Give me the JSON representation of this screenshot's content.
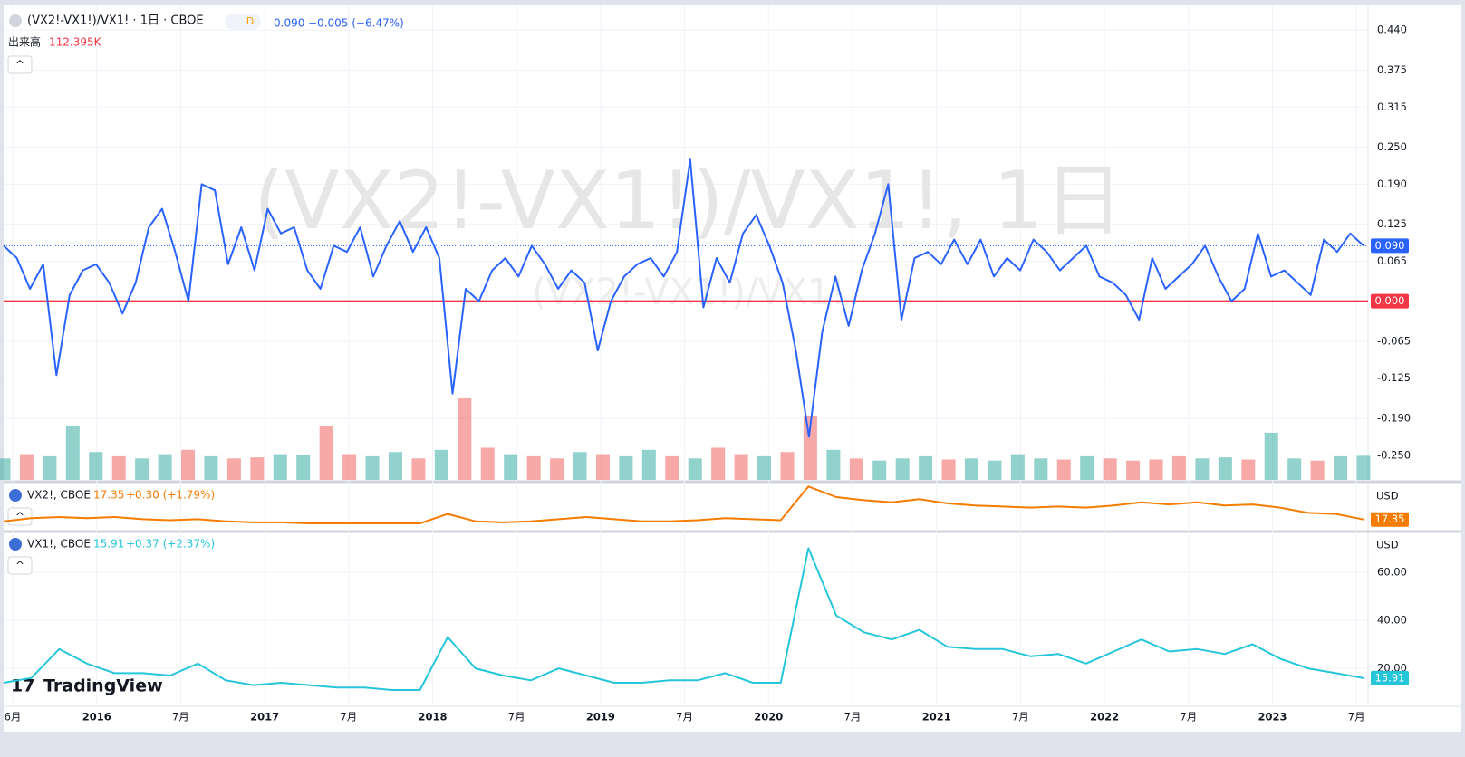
{
  "chart_data": [
    {
      "type": "line",
      "title": "(VX2!-VX1!)/VX1! · 1日 · CBOE",
      "interval_badge": "D",
      "change_label": "−0.005 (−6.47%)",
      "watermark": "(VX2!-VX1!)/VX1!, 1日",
      "watermark_sub": "(VX2!-VX1!)/VX1!",
      "color": "#2962ff",
      "ylim": [
        -0.29,
        0.48
      ],
      "yticks": [
        {
          "value": -0.25,
          "label": "-0.250"
        },
        {
          "value": -0.19,
          "label": "-0.190"
        },
        {
          "value": -0.125,
          "label": "-0.125"
        },
        {
          "value": -0.065,
          "label": "-0.065"
        },
        {
          "value": 0.065,
          "label": "0.065"
        },
        {
          "value": 0.125,
          "label": "0.125"
        },
        {
          "value": 0.19,
          "label": "0.190"
        },
        {
          "value": 0.25,
          "label": "0.250"
        },
        {
          "value": 0.315,
          "label": "0.315"
        },
        {
          "value": 0.375,
          "label": "0.375"
        },
        {
          "value": 0.44,
          "label": "0.440"
        }
      ],
      "price_line": {
        "value": 0.09,
        "label": "0.090"
      },
      "zero_line": {
        "value": 0,
        "label": "0.000",
        "color": "#f23645"
      },
      "values": [
        0.09,
        0.07,
        0.02,
        0.06,
        -0.12,
        0.01,
        0.05,
        0.06,
        0.03,
        -0.02,
        0.03,
        0.12,
        0.15,
        0.08,
        0.0,
        0.19,
        0.18,
        0.06,
        0.12,
        0.05,
        0.15,
        0.11,
        0.12,
        0.05,
        0.02,
        0.09,
        0.08,
        0.12,
        0.04,
        0.09,
        0.13,
        0.08,
        0.12,
        0.07,
        -0.15,
        0.02,
        0.0,
        0.05,
        0.07,
        0.04,
        0.09,
        0.06,
        0.02,
        0.05,
        0.03,
        -0.08,
        0.0,
        0.04,
        0.06,
        0.07,
        0.04,
        0.08,
        0.23,
        -0.01,
        0.07,
        0.03,
        0.11,
        0.14,
        0.09,
        0.03,
        -0.08,
        -0.22,
        -0.05,
        0.04,
        -0.04,
        0.05,
        0.11,
        0.19,
        -0.03,
        0.07,
        0.08,
        0.06,
        0.1,
        0.06,
        0.1,
        0.04,
        0.07,
        0.05,
        0.1,
        0.08,
        0.05,
        0.07,
        0.09,
        0.04,
        0.03,
        0.01,
        -0.03,
        0.07,
        0.02,
        0.04,
        0.06,
        0.09,
        0.04,
        0.0,
        0.02,
        0.11,
        0.04,
        0.05,
        0.03,
        0.01,
        0.1,
        0.08,
        0.11,
        0.09
      ],
      "volume": {
        "name": "出来高",
        "value_label": "112.395K",
        "up_color": "#26a69a",
        "down_color": "#ef5350",
        "values": [
          100,
          120,
          110,
          250,
          130,
          110,
          100,
          120,
          140,
          110,
          100,
          105,
          120,
          115,
          250,
          120,
          110,
          130,
          100,
          140,
          380,
          150,
          120,
          110,
          100,
          130,
          120,
          110,
          140,
          110,
          100,
          150,
          120,
          110,
          130,
          300,
          140,
          100,
          90,
          100,
          110,
          95,
          100,
          90,
          120,
          100,
          95,
          110,
          100,
          90,
          95,
          110,
          100,
          105,
          95,
          220,
          100,
          90,
          110,
          112.395
        ]
      }
    },
    {
      "type": "line",
      "name": "VX2!, CBOE",
      "color": "#f57c00",
      "change_label": "+0.30 (+1.79%)",
      "currency": "USD",
      "last": {
        "value": 17.35,
        "label": "17.35"
      },
      "ylim": [
        12.5,
        34
      ],
      "values": [
        16.5,
        18,
        18.5,
        18,
        18.5,
        17.5,
        17,
        17.5,
        16.5,
        16,
        16,
        15.5,
        15.5,
        15.5,
        15.5,
        15.5,
        20,
        16.5,
        16,
        16.5,
        17.5,
        18.5,
        17.5,
        16.5,
        16.5,
        17,
        18,
        17.5,
        17,
        33,
        28,
        26.5,
        25.5,
        27,
        25,
        24,
        23.5,
        23,
        23.5,
        23,
        24,
        25.5,
        24.5,
        25.5,
        24,
        24.5,
        23,
        20.5,
        20,
        17.35
      ]
    },
    {
      "type": "line",
      "name": "VX1!, CBOE",
      "color": "#26c6da",
      "change_label": "+0.37 (+2.37%)",
      "currency": "USD",
      "last": {
        "value": 15.91,
        "label": "15.91"
      },
      "ylim": [
        4.2,
        75.8
      ],
      "yticks": [
        {
          "value": 20,
          "label": "20.00"
        },
        {
          "value": 40,
          "label": "40.00"
        },
        {
          "value": 60,
          "label": "60.00"
        }
      ],
      "values": [
        14,
        16,
        28,
        22,
        18,
        18,
        17,
        22,
        15,
        13,
        14,
        13,
        12,
        12,
        11,
        11,
        33,
        20,
        17,
        15,
        20,
        17,
        14,
        14,
        15,
        15,
        18,
        14,
        14,
        70,
        42,
        35,
        32,
        36,
        29,
        28,
        28,
        25,
        26,
        22,
        27,
        32,
        27,
        28,
        26,
        30,
        24,
        20,
        18,
        15.91
      ]
    }
  ],
  "time_axis": [
    "6月",
    "2016",
    "7月",
    "2017",
    "7月",
    "2018",
    "7月",
    "2019",
    "7月",
    "2020",
    "7月",
    "2021",
    "7月",
    "2022",
    "7月",
    "2023",
    "7月"
  ],
  "brand": "TradingView"
}
